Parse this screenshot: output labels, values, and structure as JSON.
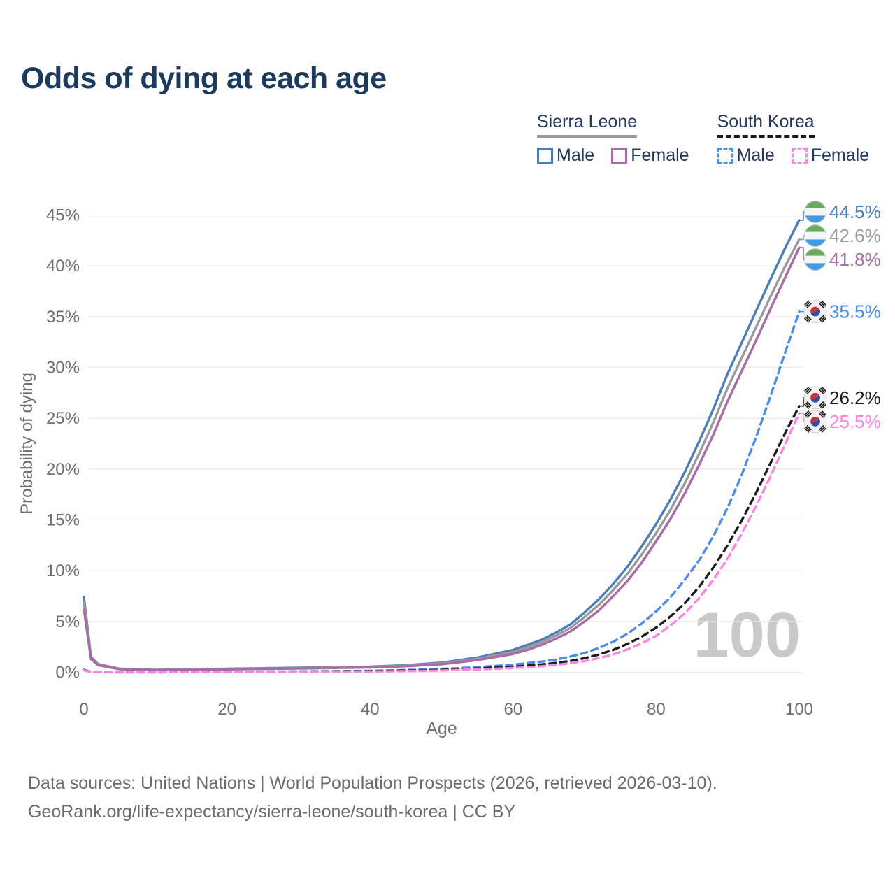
{
  "page": {
    "title": "Odds of dying at each age",
    "footer_line1": "Data sources: United Nations | World Population Prospects (2026, retrieved 2026-03-10).",
    "footer_line2": "GeoRank.org/life-expectancy/sierra-leone/south-korea | CC BY"
  },
  "legend": {
    "groups": [
      {
        "country": "Sierra Leone",
        "underline_color": "#9a9a9a",
        "underline_style": "solid",
        "items": [
          {
            "label": "Male",
            "color": "#4a7eba",
            "style": "solid"
          },
          {
            "label": "Female",
            "color": "#a86ba6",
            "style": "solid"
          }
        ]
      },
      {
        "country": "South Korea",
        "underline_color": "#1a1a1a",
        "underline_style": "dashed",
        "items": [
          {
            "label": "Male",
            "color": "#4a8df0",
            "style": "dashed"
          },
          {
            "label": "Female",
            "color": "#ff85e2",
            "style": "dashed"
          }
        ]
      }
    ]
  },
  "chart_data": {
    "type": "line",
    "title": "Odds of dying at each age",
    "xlabel": "Age",
    "ylabel": "Probability of dying",
    "xlim": [
      0,
      100
    ],
    "ylim": [
      0,
      45
    ],
    "x_ticks": [
      0,
      20,
      40,
      60,
      80,
      100
    ],
    "y_ticks": [
      0,
      5,
      10,
      15,
      20,
      25,
      30,
      35,
      40,
      45
    ],
    "y_tick_suffix": "%",
    "grid": "horizontal",
    "legend_position": "top-right",
    "watermark": "100",
    "ages": [
      0,
      1,
      2,
      5,
      10,
      15,
      20,
      25,
      30,
      35,
      40,
      45,
      50,
      55,
      60,
      62,
      64,
      66,
      68,
      70,
      72,
      74,
      76,
      78,
      80,
      82,
      84,
      86,
      88,
      90,
      92,
      94,
      96,
      98,
      100
    ],
    "series": [
      {
        "name": "Sierra Leone Male",
        "country": "Sierra Leone",
        "sex": "Male",
        "color": "#4a7eba",
        "dash": "solid",
        "flag": "sierra-leone",
        "end_label": "44.5%",
        "values": [
          7.4,
          1.5,
          0.8,
          0.35,
          0.25,
          0.3,
          0.35,
          0.4,
          0.45,
          0.5,
          0.55,
          0.7,
          0.95,
          1.45,
          2.2,
          2.7,
          3.2,
          3.9,
          4.7,
          5.9,
          7.2,
          8.7,
          10.4,
          12.4,
          14.6,
          17.0,
          19.7,
          22.7,
          25.9,
          29.4,
          32.5,
          35.6,
          38.7,
          41.7,
          44.5
        ]
      },
      {
        "name": "Sierra Leone Total",
        "country": "Sierra Leone",
        "sex": "Both",
        "color": "#9a9a9a",
        "dash": "solid",
        "flag": "sierra-leone",
        "end_label": "42.6%",
        "values": [
          6.9,
          1.4,
          0.75,
          0.33,
          0.23,
          0.28,
          0.32,
          0.37,
          0.42,
          0.47,
          0.52,
          0.65,
          0.88,
          1.32,
          2.0,
          2.45,
          2.95,
          3.6,
          4.35,
          5.45,
          6.65,
          8.1,
          9.7,
          11.6,
          13.7,
          16.0,
          18.6,
          21.5,
          24.6,
          28.0,
          31.0,
          34.0,
          37.0,
          39.9,
          42.6
        ]
      },
      {
        "name": "Sierra Leone Female",
        "country": "Sierra Leone",
        "sex": "Female",
        "color": "#a86ba6",
        "dash": "solid",
        "flag": "sierra-leone",
        "end_label": "41.8%",
        "values": [
          6.2,
          1.3,
          0.7,
          0.3,
          0.21,
          0.25,
          0.29,
          0.33,
          0.38,
          0.43,
          0.48,
          0.6,
          0.8,
          1.2,
          1.8,
          2.2,
          2.7,
          3.3,
          4.0,
          5.0,
          6.1,
          7.5,
          9.0,
          10.8,
          12.9,
          15.1,
          17.6,
          20.4,
          23.4,
          26.7,
          29.7,
          32.7,
          35.8,
          38.8,
          41.8
        ]
      },
      {
        "name": "South Korea Male",
        "country": "South Korea",
        "sex": "Male",
        "color": "#4a8df0",
        "dash": "dashed",
        "flag": "south-korea",
        "end_label": "35.5%",
        "values": [
          0.25,
          0.03,
          0.02,
          0.01,
          0.01,
          0.03,
          0.05,
          0.06,
          0.08,
          0.1,
          0.15,
          0.22,
          0.32,
          0.5,
          0.75,
          0.9,
          1.05,
          1.25,
          1.55,
          1.9,
          2.4,
          3.0,
          3.8,
          4.8,
          6.0,
          7.4,
          9.1,
          11.0,
          13.4,
          16.2,
          19.5,
          23.2,
          27.2,
          31.4,
          35.5
        ]
      },
      {
        "name": "South Korea Total",
        "country": "South Korea",
        "sex": "Both",
        "color": "#1c1c1c",
        "dash": "dashed",
        "flag": "south-korea",
        "end_label": "26.2%",
        "values": [
          0.22,
          0.025,
          0.018,
          0.009,
          0.009,
          0.02,
          0.035,
          0.045,
          0.06,
          0.08,
          0.11,
          0.16,
          0.24,
          0.37,
          0.55,
          0.66,
          0.78,
          0.93,
          1.12,
          1.4,
          1.75,
          2.2,
          2.8,
          3.5,
          4.4,
          5.5,
          6.8,
          8.4,
          10.3,
          12.5,
          15.0,
          17.7,
          20.6,
          23.5,
          26.2
        ]
      },
      {
        "name": "South Korea Female",
        "country": "South Korea",
        "sex": "Female",
        "color": "#ff85e2",
        "dash": "dashed",
        "flag": "south-korea",
        "end_label": "25.5%",
        "values": [
          0.2,
          0.02,
          0.015,
          0.008,
          0.008,
          0.015,
          0.025,
          0.035,
          0.045,
          0.06,
          0.08,
          0.12,
          0.18,
          0.28,
          0.42,
          0.5,
          0.6,
          0.73,
          0.9,
          1.1,
          1.4,
          1.75,
          2.25,
          2.85,
          3.6,
          4.6,
          5.8,
          7.3,
          9.1,
          11.2,
          13.7,
          16.4,
          19.3,
          22.4,
          25.5
        ]
      }
    ]
  }
}
